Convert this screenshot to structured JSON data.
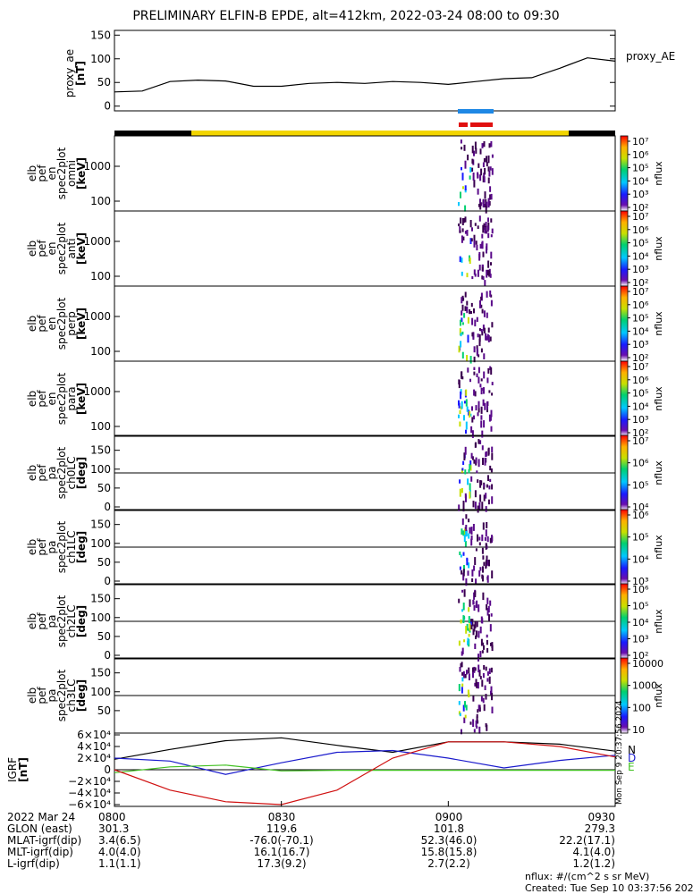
{
  "title": "PRELIMINARY ELFIN-B EPDE, alt=412km, 2022-03-24 08:00 to 09:30",
  "footer": {
    "units": "nflux: #/(cm^2 s sr MeV)",
    "created": "Created: Tue Sep 10 03:37:56 2024"
  },
  "side_stamp": "Mon Sep 9 20:37:56 2024",
  "bottom_table": {
    "rows": [
      {
        "label": "2022 Mar 24",
        "values": [
          "0800",
          "0830",
          "0900",
          "0930"
        ]
      },
      {
        "label": "GLON (east)",
        "values": [
          "301.3",
          "119.6",
          "101.8",
          "279.3"
        ]
      },
      {
        "label": "MLAT-igrf(dip)",
        "values": [
          "3.4(6.5)",
          "-76.0(-70.1)",
          "52.3(46.0)",
          "22.2(17.1)"
        ]
      },
      {
        "label": "MLT-igrf(dip)",
        "values": [
          "4.0(4.0)",
          "16.1(16.7)",
          "15.8(15.8)",
          "4.1(4.0)"
        ]
      },
      {
        "label": "L-igrf(dip)",
        "values": [
          "1.1(1.1)",
          "17.3(9.2)",
          "2.7(2.2)",
          "1.2(1.2)"
        ]
      }
    ]
  },
  "panels": {
    "ae": {
      "ylabel": [
        "proxy_ae",
        "[nT]"
      ],
      "ticks": [
        "0",
        "50",
        "100",
        "150"
      ],
      "legend": "proxy_AE"
    },
    "spec": [
      {
        "ylabel": [
          "elb",
          "pef",
          "en",
          "spec2plot",
          "omni",
          "[keV]"
        ],
        "ticks": [
          "100",
          "1000"
        ],
        "cb_label": "nflux"
      },
      {
        "ylabel": [
          "elb",
          "pef",
          "en",
          "spec2plot",
          "anti",
          "[keV]"
        ],
        "ticks": [
          "100",
          "1000"
        ],
        "cb_label": "nflux"
      },
      {
        "ylabel": [
          "elb",
          "pef",
          "en",
          "spec2plot",
          "perp",
          "[keV]"
        ],
        "ticks": [
          "100",
          "1000"
        ],
        "cb_label": "nflux"
      },
      {
        "ylabel": [
          "elb",
          "pef",
          "en",
          "spec2plot",
          "para",
          "[keV]"
        ],
        "ticks": [
          "100",
          "1000"
        ],
        "cb_label": "nflux"
      },
      {
        "ylabel": [
          "elb",
          "pef",
          "pa",
          "spec2plot",
          "ch0LC",
          "[deg]"
        ],
        "ticks": [
          "0",
          "50",
          "100",
          "150"
        ],
        "cb_label": "nflux"
      },
      {
        "ylabel": [
          "elb",
          "pef",
          "pa",
          "spec2plot",
          "ch1LC",
          "[deg]"
        ],
        "ticks": [
          "0",
          "50",
          "100",
          "150"
        ],
        "cb_label": "nflux"
      },
      {
        "ylabel": [
          "elb",
          "pef",
          "pa",
          "spec2plot",
          "ch2LC",
          "[deg]"
        ],
        "ticks": [
          "0",
          "50",
          "100",
          "150"
        ],
        "cb_label": "nflux"
      },
      {
        "ylabel": [
          "elb",
          "pef",
          "pa",
          "spec2plot",
          "ch3LC",
          "[deg]"
        ],
        "ticks": [
          "50",
          "100",
          "150"
        ],
        "cb_label": "nflux"
      }
    ],
    "igrf": {
      "ylabel": [
        "IGRF",
        "[nT]"
      ],
      "ticks": [
        "6×10⁴",
        "4×10⁴",
        "2×10⁴",
        "0",
        "−2×10⁴",
        "−4×10⁴",
        "−6×10⁴"
      ],
      "legend": [
        "N",
        "D",
        "E"
      ]
    }
  },
  "colorbars": [
    {
      "labels": [
        "10⁷",
        "10⁶",
        "10⁵",
        "10⁴",
        "10³",
        "10²"
      ]
    },
    {
      "labels": [
        "10⁷",
        "10⁶",
        "10⁵",
        "10⁴",
        "10³",
        "10²"
      ]
    },
    {
      "labels": [
        "10⁷",
        "10⁶",
        "10⁵",
        "10⁴",
        "10³",
        "10²"
      ]
    },
    {
      "labels": [
        "10⁷",
        "10⁶",
        "10⁵",
        "10⁴",
        "10³",
        "10²"
      ]
    },
    {
      "labels": [
        "10⁷",
        "10⁶",
        "10⁵",
        "10⁴"
      ]
    },
    {
      "labels": [
        "10⁶",
        "10⁵",
        "10⁴",
        "10³"
      ]
    },
    {
      "labels": [
        "10⁶",
        "10⁵",
        "10⁴",
        "10³",
        "10²"
      ]
    },
    {
      "labels": [
        "10000",
        "1000",
        "100",
        "10"
      ]
    }
  ],
  "colors": {
    "black": "#000000",
    "yellow": "#f2d500",
    "blue_bar": "#1e88e5",
    "red_bar": "#e01010",
    "ae_line": "#000000",
    "igrf_n": "#000000",
    "igrf_d": "#1a1acc",
    "igrf_e": "#40c020",
    "igrf_r": "#d01010"
  },
  "chart_data": [
    {
      "type": "line",
      "title": "PRELIMINARY ELFIN-B EPDE, alt=412km, 2022-03-24 08:00 to 09:30",
      "ylabel": "proxy_ae [nT]",
      "ylim": [
        -10,
        160
      ],
      "x_minutes_after_0800": [
        0,
        5,
        10,
        15,
        20,
        25,
        30,
        35,
        40,
        45,
        50,
        55,
        60,
        65,
        70,
        75,
        80,
        85,
        90
      ],
      "series": [
        {
          "name": "proxy_AE",
          "values": [
            30,
            32,
            52,
            55,
            53,
            42,
            42,
            48,
            50,
            48,
            52,
            50,
            46,
            52,
            58,
            60,
            80,
            102,
            95
          ]
        }
      ]
    },
    {
      "type": "line",
      "ylabel": "IGRF [nT]",
      "ylim": [
        -60000,
        60000
      ],
      "x_minutes_after_0800": [
        0,
        10,
        20,
        30,
        40,
        50,
        60,
        70,
        80,
        90
      ],
      "series": [
        {
          "name": "N",
          "values": [
            18000,
            35000,
            50000,
            55000,
            42000,
            30000,
            48000,
            48000,
            44000,
            32000
          ]
        },
        {
          "name": "D",
          "values": [
            20000,
            15000,
            -8000,
            12000,
            30000,
            33000,
            20000,
            3000,
            16000,
            25000
          ]
        },
        {
          "name": "E",
          "values": [
            -5000,
            5000,
            8000,
            -2000,
            -1000,
            -1000,
            -1000,
            -1000,
            -1000,
            -1000
          ]
        },
        {
          "name": "R",
          "values": [
            0,
            -35000,
            -55000,
            -60000,
            -35000,
            20000,
            48000,
            48000,
            40000,
            22000
          ]
        }
      ]
    }
  ]
}
